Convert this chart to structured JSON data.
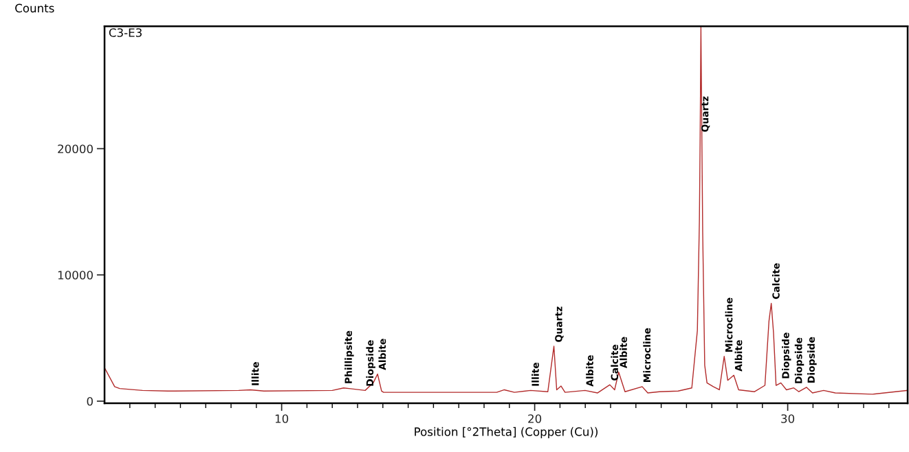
{
  "chart_data": {
    "type": "line",
    "xlabel": "Position [°2Theta] (Copper (Cu))",
    "ylabel": "Counts",
    "series": [
      {
        "color": "#b22a2a",
        "x": [
          3.0,
          3.4,
          3.6,
          4.5,
          5.5,
          8.3,
          8.77,
          9.3,
          12.0,
          12.45,
          13.3,
          13.62,
          13.79,
          13.95,
          14.03,
          18.5,
          18.8,
          19.2,
          19.84,
          20.52,
          20.76,
          20.87,
          21.04,
          21.2,
          21.99,
          22.48,
          22.97,
          23.16,
          23.32,
          23.57,
          24.25,
          24.47,
          24.93,
          25.67,
          26.21,
          26.43,
          26.51,
          26.54,
          26.57,
          26.64,
          26.72,
          26.81,
          27.06,
          27.3,
          27.49,
          27.63,
          27.87,
          28.06,
          28.69,
          29.1,
          29.26,
          29.35,
          29.44,
          29.54,
          29.73,
          29.95,
          30.24,
          30.44,
          30.74,
          30.98,
          31.42,
          31.88,
          33.35,
          34.74
        ],
        "values": [
          2650,
          1150,
          1000,
          850,
          800,
          850,
          900,
          800,
          850,
          1050,
          850,
          1450,
          2150,
          800,
          700,
          700,
          900,
          700,
          850,
          750,
          4350,
          900,
          1200,
          700,
          850,
          650,
          1300,
          900,
          2300,
          750,
          1150,
          650,
          750,
          800,
          1050,
          5600,
          14300,
          21000,
          29700,
          13400,
          2850,
          1450,
          1150,
          900,
          3550,
          1650,
          2050,
          900,
          750,
          1250,
          6350,
          7750,
          5400,
          1250,
          1450,
          900,
          1050,
          750,
          1100,
          650,
          850,
          650,
          550,
          850
        ]
      }
    ],
    "xlim": [
      3.0,
      34.74
    ],
    "ylim": [
      -160,
      29700
    ],
    "xticks": [
      {
        "value": 4,
        "label": null
      },
      {
        "value": 5,
        "label": null
      },
      {
        "value": 6,
        "label": null
      },
      {
        "value": 7,
        "label": null
      },
      {
        "value": 8,
        "label": null
      },
      {
        "value": 9,
        "label": null
      },
      10,
      {
        "value": 11,
        "label": null
      },
      {
        "value": 12,
        "label": null
      },
      {
        "value": 13,
        "label": null
      },
      {
        "value": 14,
        "label": null
      },
      {
        "value": 15,
        "label": null
      },
      {
        "value": 16,
        "label": null
      },
      {
        "value": 17,
        "label": null
      },
      {
        "value": 18,
        "label": null
      },
      {
        "value": 19,
        "label": null
      },
      20,
      {
        "value": 21,
        "label": null
      },
      {
        "value": 22,
        "label": null
      },
      {
        "value": 23,
        "label": null
      },
      {
        "value": 24,
        "label": null
      },
      {
        "value": 25,
        "label": null
      },
      {
        "value": 26,
        "label": null
      },
      {
        "value": 27,
        "label": null
      },
      {
        "value": 28,
        "label": null
      },
      {
        "value": 29,
        "label": null
      },
      30,
      {
        "value": 31,
        "label": null
      },
      {
        "value": 32,
        "label": null
      },
      {
        "value": 33,
        "label": null
      },
      {
        "value": 34,
        "label": null
      }
    ],
    "yticks": [
      0,
      10000,
      20000
    ],
    "grid": false,
    "legend": false,
    "annotations": [
      "C3-E3",
      {
        "text": "Illite",
        "x": 8.77,
        "y": 900
      },
      {
        "text": "Phillipsite",
        "x": 12.45,
        "y": 1050
      },
      {
        "text": "Diopside",
        "x": 13.3,
        "y": 850
      },
      {
        "text": "Albite",
        "x": 13.79,
        "y": 2150
      },
      {
        "text": "Illite",
        "x": 19.84,
        "y": 850
      },
      {
        "text": "Quartz",
        "x": 20.76,
        "y": 4350
      },
      {
        "text": "Albite",
        "x": 21.99,
        "y": 850
      },
      {
        "text": "Calcite",
        "x": 22.97,
        "y": 1300
      },
      {
        "text": "Albite",
        "x": 23.32,
        "y": 2300
      },
      {
        "text": "Microcline",
        "x": 24.25,
        "y": 1150
      },
      {
        "text": "Quartz",
        "x": 26.54,
        "y": 21000
      },
      {
        "text": "Microcline",
        "x": 27.49,
        "y": 3550
      },
      {
        "text": "Albite",
        "x": 27.87,
        "y": 2050
      },
      {
        "text": "Calcite",
        "x": 29.35,
        "y": 7750
      },
      {
        "text": "Diopside",
        "x": 29.73,
        "y": 1450
      },
      {
        "text": "Diopside",
        "x": 30.24,
        "y": 1050
      },
      {
        "text": "Diopside",
        "x": 30.74,
        "y": 1100
      }
    ]
  }
}
